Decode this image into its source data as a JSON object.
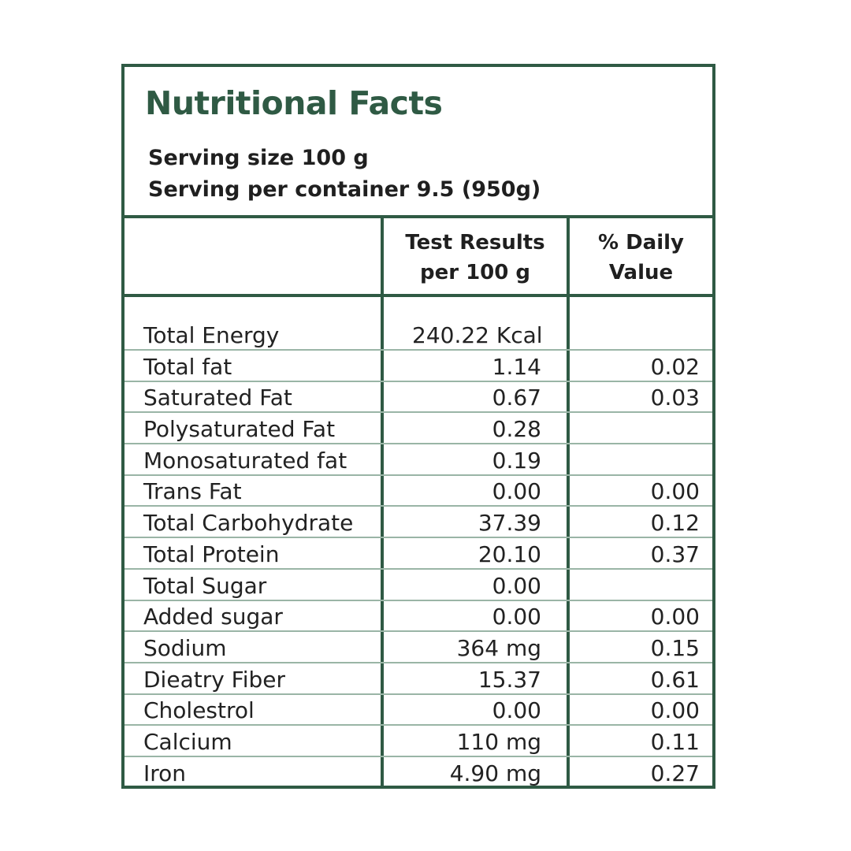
{
  "label": {
    "title": "Nutritional Facts",
    "serving_size": "Serving size 100 g",
    "serving_per_container": "Serving per container 9.5 (950g)"
  },
  "columns": {
    "results": "Test Results\nper 100 g",
    "daily": "% Daily\nValue"
  },
  "rows": [
    {
      "name": "Total Energy",
      "value": "240.22 Kcal",
      "dv": ""
    },
    {
      "name": "Total fat",
      "value": "1.14",
      "dv": "0.02"
    },
    {
      "name": "Saturated Fat",
      "value": "0.67",
      "dv": "0.03"
    },
    {
      "name": "Polysaturated Fat",
      "value": "0.28",
      "dv": ""
    },
    {
      "name": "Monosaturated fat",
      "value": "0.19",
      "dv": ""
    },
    {
      "name": "Trans Fat",
      "value": "0.00",
      "dv": "0.00"
    },
    {
      "name": "Total Carbohydrate",
      "value": "37.39",
      "dv": "0.12"
    },
    {
      "name": "Total Protein",
      "value": "20.10",
      "dv": "0.37"
    },
    {
      "name": "Total Sugar",
      "value": "0.00",
      "dv": ""
    },
    {
      "name": "Added sugar",
      "value": "0.00",
      "dv": "0.00"
    },
    {
      "name": "Sodium",
      "value": "364 mg",
      "dv": "0.15"
    },
    {
      "name": "Dieatry Fiber",
      "value": "15.37",
      "dv": "0.61"
    },
    {
      "name": "Cholestrol",
      "value": "0.00",
      "dv": "0.00"
    },
    {
      "name": "Calcium",
      "value": "110 mg",
      "dv": "0.11"
    },
    {
      "name": "Iron",
      "value": "4.90 mg",
      "dv": "0.27"
    }
  ],
  "colors": {
    "border": "#2f5a44",
    "row_separator": "#9ab5a6",
    "title": "#2f5a44"
  }
}
